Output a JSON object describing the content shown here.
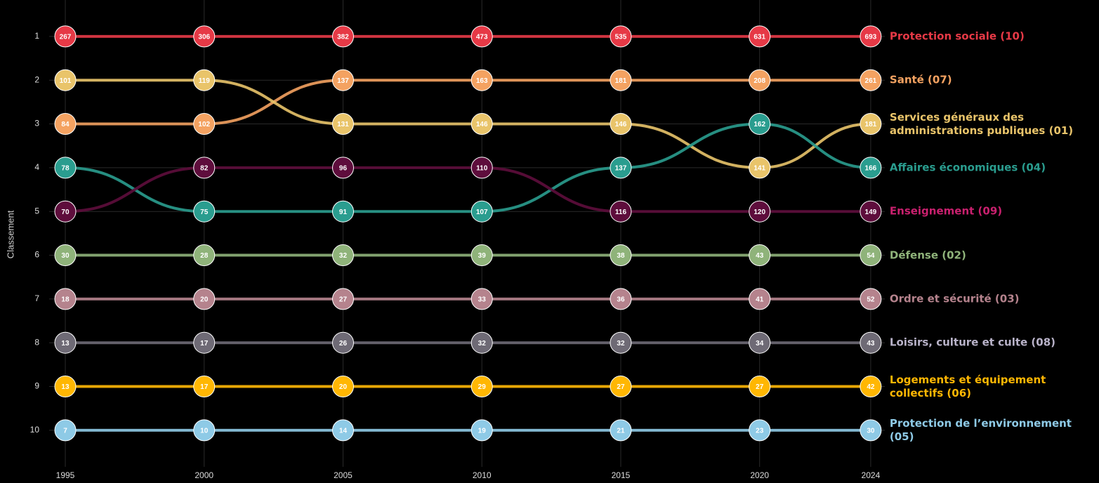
{
  "chart_data": {
    "type": "bump",
    "y_label": "Classement",
    "x": [
      1995,
      2000,
      2005,
      2010,
      2015,
      2020,
      2024
    ],
    "xlim": [
      1994,
      2026
    ],
    "xticks": [
      1995,
      2000,
      2005,
      2010,
      2015,
      2020,
      2024
    ],
    "ylim": [
      10.7,
      0.2
    ],
    "yticks": [
      1,
      2,
      3,
      4,
      5,
      6,
      7,
      8,
      9,
      10
    ],
    "grid": true,
    "series": [
      {
        "name": "Protection sociale (10)",
        "color": "#e63946",
        "values": [
          1,
          1,
          1,
          1,
          1,
          1,
          1
        ],
        "amounts": [
          267,
          306,
          382,
          473,
          535,
          631,
          693
        ]
      },
      {
        "name": "Santé (07)",
        "color": "#f4a261",
        "values": [
          3,
          3,
          2,
          2,
          2,
          2,
          2
        ],
        "amounts": [
          84,
          102,
          137,
          163,
          181,
          208,
          261
        ]
      },
      {
        "name": "Services généraux des administrations publiques (01)",
        "color": "#e9c46a",
        "values": [
          2,
          2,
          3,
          3,
          3,
          4,
          3
        ],
        "amounts": [
          101,
          119,
          131,
          146,
          146,
          141,
          181
        ]
      },
      {
        "name": "Affaires économiques (04)",
        "color": "#2a9d8f",
        "values": [
          4,
          5,
          5,
          5,
          4,
          3,
          4
        ],
        "amounts": [
          78,
          75,
          91,
          107,
          137,
          162,
          166
        ]
      },
      {
        "name": "Enseignement (09)",
        "color": "#5e0d3c",
        "label_color": "#c9206e",
        "values": [
          5,
          4,
          4,
          4,
          5,
          5,
          5
        ],
        "amounts": [
          70,
          82,
          96,
          110,
          116,
          120,
          149
        ]
      },
      {
        "name": "Défense (02)",
        "color": "#8fb37a",
        "values": [
          6,
          6,
          6,
          6,
          6,
          6,
          6
        ],
        "amounts": [
          30,
          28,
          32,
          39,
          38,
          43,
          54
        ]
      },
      {
        "name": "Ordre et sécurité (03)",
        "color": "#b5838d",
        "values": [
          7,
          7,
          7,
          7,
          7,
          7,
          7
        ],
        "amounts": [
          18,
          20,
          27,
          33,
          36,
          41,
          52
        ]
      },
      {
        "name": "Loisirs, culture et culte (08)",
        "color": "#6e6a75",
        "label_color": "#b9b3c9",
        "values": [
          8,
          8,
          8,
          8,
          8,
          8,
          8
        ],
        "amounts": [
          13,
          17,
          26,
          32,
          32,
          34,
          43
        ]
      },
      {
        "name": "Logements et équipement collectifs (06)",
        "color": "#ffb703",
        "values": [
          9,
          9,
          9,
          9,
          9,
          9,
          9
        ],
        "amounts": [
          13,
          17,
          20,
          29,
          27,
          27,
          42
        ]
      },
      {
        "name": "Protection de l’environnement (05)",
        "color": "#8ecae6",
        "values": [
          10,
          10,
          10,
          10,
          10,
          10,
          10
        ],
        "amounts": [
          7,
          10,
          14,
          19,
          21,
          23,
          30
        ]
      }
    ]
  }
}
